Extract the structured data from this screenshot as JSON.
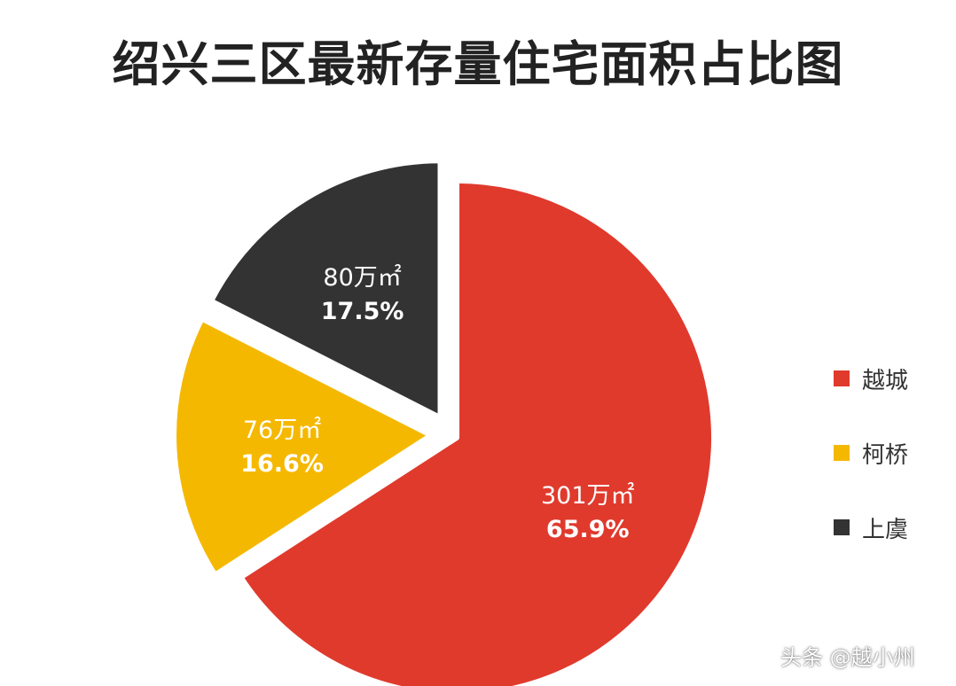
{
  "chart_data": {
    "type": "pie",
    "title": "绍兴三区最新存量住宅面积占比图",
    "legend_position": "right",
    "unit": "万㎡",
    "slices": [
      {
        "name": "越城",
        "value": 301,
        "value_label": "301万㎡",
        "percent_label": "65.9%",
        "color": "#E03A2D"
      },
      {
        "name": "柯桥",
        "value": 76,
        "value_label": "76万㎡",
        "percent_label": "16.6%",
        "color": "#F5B800"
      },
      {
        "name": "上虞",
        "value": 80,
        "value_label": "80万㎡",
        "percent_label": "17.5%",
        "color": "#333333"
      }
    ]
  },
  "watermark": "头条 @越小州"
}
